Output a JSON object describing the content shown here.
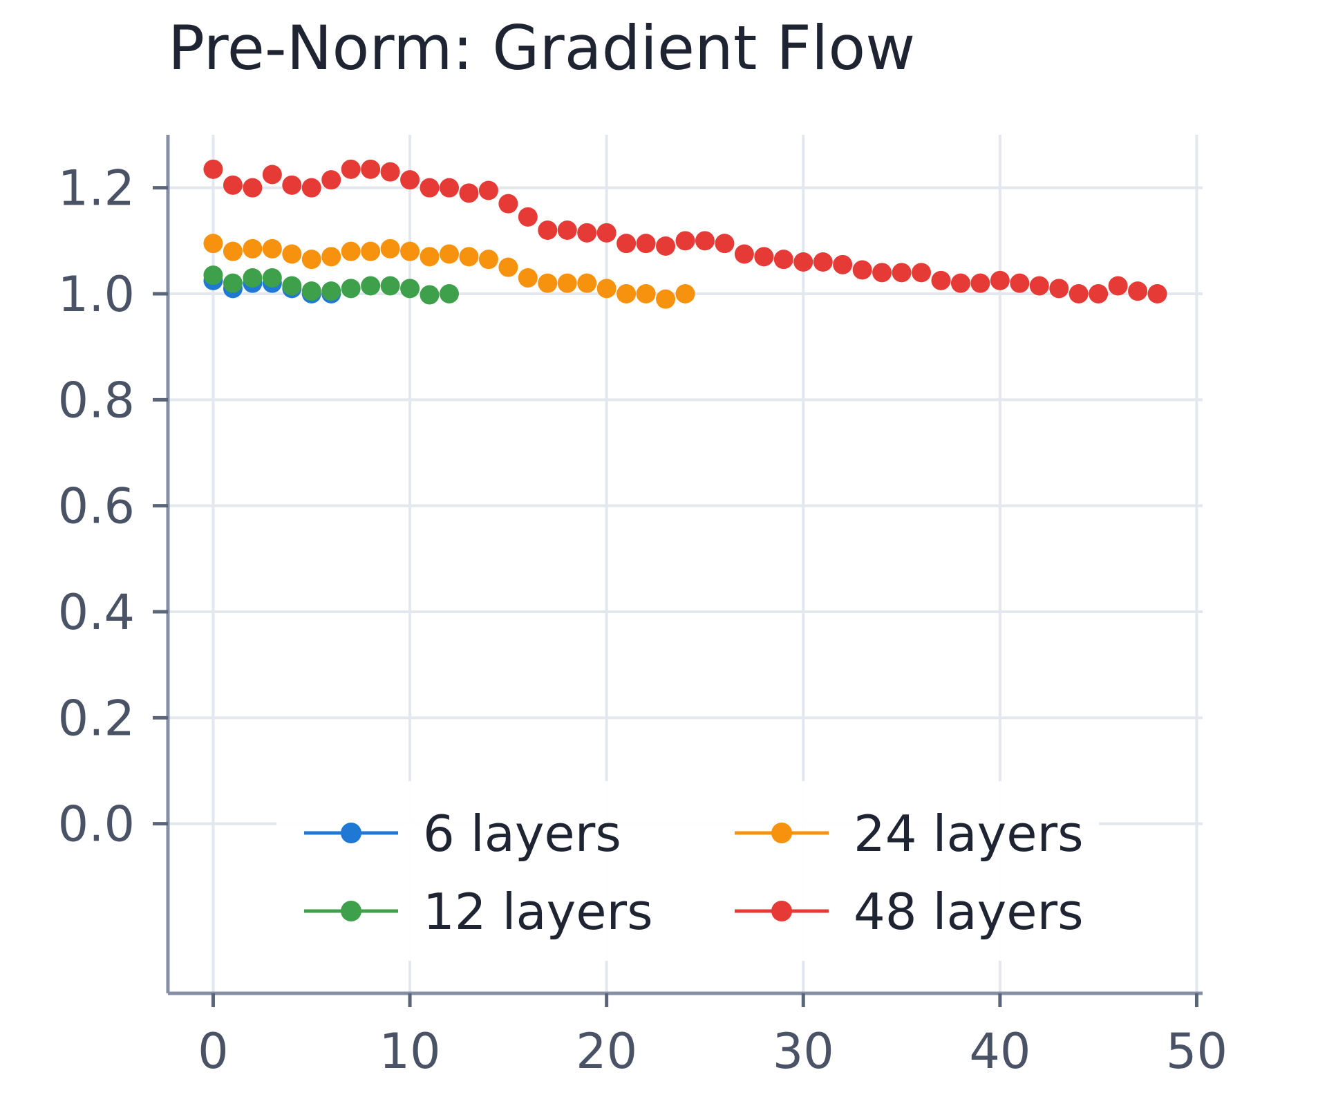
{
  "chart_data": {
    "type": "scatter",
    "title": "Pre-Norm: Gradient Flow",
    "xlabel": "",
    "ylabel": "",
    "xlim": [
      -2.3,
      50.3
    ],
    "ylim": [
      -0.32,
      1.3
    ],
    "x_ticks": [
      0,
      10,
      20,
      30,
      40,
      50
    ],
    "x_tick_labels": [
      "0",
      "10",
      "20",
      "30",
      "40",
      "50"
    ],
    "y_ticks": [
      0.0,
      0.2,
      0.4,
      0.6,
      0.8,
      1.0,
      1.2
    ],
    "y_tick_labels": [
      "0.0",
      "0.2",
      "0.4",
      "0.6",
      "0.8",
      "1.0",
      "1.2"
    ],
    "grid": true,
    "legend_placement": "lower-center",
    "series": [
      {
        "name": "6 layers",
        "color": "#1e78d4",
        "x": [
          0,
          1,
          2,
          3,
          4,
          5,
          6
        ],
        "values": [
          1.025,
          1.01,
          1.02,
          1.02,
          1.01,
          1.0,
          1.0
        ]
      },
      {
        "name": "12 layers",
        "color": "#3ea04a",
        "x": [
          0,
          1,
          2,
          3,
          4,
          5,
          6,
          7,
          8,
          9,
          10,
          11,
          12
        ],
        "values": [
          1.035,
          1.02,
          1.03,
          1.03,
          1.015,
          1.005,
          1.005,
          1.01,
          1.015,
          1.015,
          1.01,
          0.998,
          1.0
        ]
      },
      {
        "name": "24 layers",
        "color": "#f7920e",
        "x": [
          0,
          1,
          2,
          3,
          4,
          5,
          6,
          7,
          8,
          9,
          10,
          11,
          12,
          13,
          14,
          15,
          16,
          17,
          18,
          19,
          20,
          21,
          22,
          23,
          24
        ],
        "values": [
          1.095,
          1.08,
          1.085,
          1.085,
          1.075,
          1.065,
          1.07,
          1.08,
          1.08,
          1.085,
          1.08,
          1.07,
          1.075,
          1.07,
          1.065,
          1.05,
          1.03,
          1.02,
          1.02,
          1.02,
          1.01,
          1.0,
          1.0,
          0.99,
          1.0
        ]
      },
      {
        "name": "48 layers",
        "color": "#e53a35",
        "x": [
          0,
          1,
          2,
          3,
          4,
          5,
          6,
          7,
          8,
          9,
          10,
          11,
          12,
          13,
          14,
          15,
          16,
          17,
          18,
          19,
          20,
          21,
          22,
          23,
          24,
          25,
          26,
          27,
          28,
          29,
          30,
          31,
          32,
          33,
          34,
          35,
          36,
          37,
          38,
          39,
          40,
          41,
          42,
          43,
          44,
          45,
          46,
          47,
          48
        ],
        "values": [
          1.235,
          1.205,
          1.2,
          1.225,
          1.205,
          1.2,
          1.215,
          1.235,
          1.235,
          1.23,
          1.215,
          1.2,
          1.2,
          1.19,
          1.195,
          1.17,
          1.145,
          1.12,
          1.12,
          1.115,
          1.115,
          1.095,
          1.095,
          1.09,
          1.1,
          1.1,
          1.095,
          1.075,
          1.07,
          1.065,
          1.06,
          1.06,
          1.055,
          1.045,
          1.04,
          1.04,
          1.04,
          1.025,
          1.02,
          1.02,
          1.025,
          1.02,
          1.015,
          1.01,
          1.0,
          1.0,
          1.015,
          1.005,
          1.0
        ]
      }
    ]
  }
}
